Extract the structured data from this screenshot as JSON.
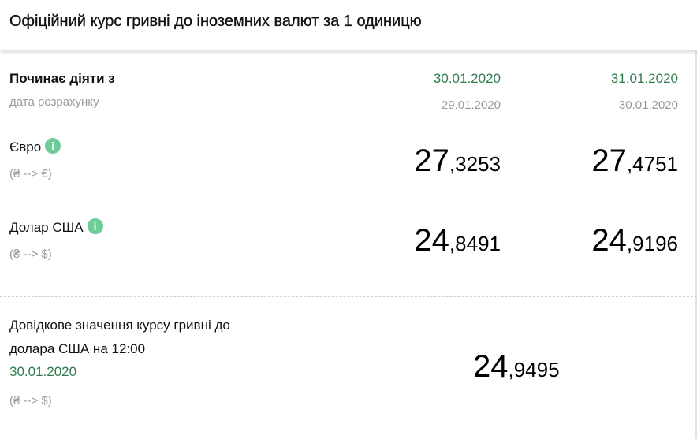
{
  "header": {
    "title": "Офіційний курс гривні до іноземних валют за 1 одиницю"
  },
  "table": {
    "start_label": "Починає діяти з",
    "calc_label": "дата розрахунку",
    "columns": [
      {
        "start_date": "30.01.2020",
        "calc_date": "29.01.2020"
      },
      {
        "start_date": "31.01.2020",
        "calc_date": "30.01.2020"
      }
    ],
    "rows": [
      {
        "name": "Євро",
        "direction": "(₴ --> €)",
        "values": [
          {
            "int": "27",
            "dec": ",3253"
          },
          {
            "int": "27",
            "dec": ",4751"
          }
        ]
      },
      {
        "name": "Долар США",
        "direction": "(₴ --> $)",
        "values": [
          {
            "int": "24",
            "dec": ",8491"
          },
          {
            "int": "24",
            "dec": ",9196"
          }
        ]
      }
    ],
    "info_icon": "i"
  },
  "reference": {
    "line1": "Довідкове значення курсу гривні до",
    "line2": "долара США на 12:00",
    "date": "30.01.2020",
    "direction": "(₴ --> $)",
    "value": {
      "int": "24",
      "dec": ",9495"
    }
  },
  "colors": {
    "green": "#2f7d4f",
    "info": "#6dcc98"
  }
}
